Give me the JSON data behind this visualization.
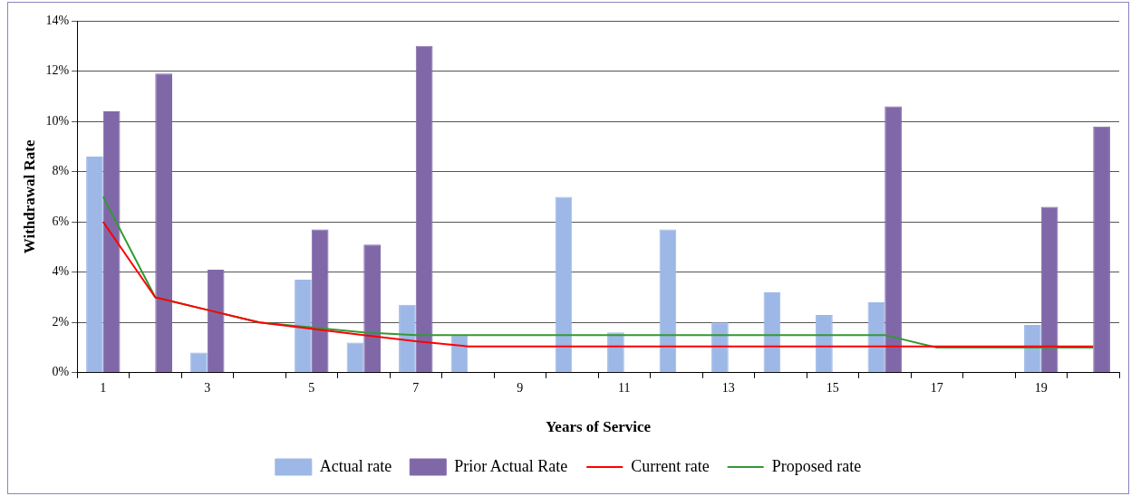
{
  "chart_data": {
    "type": "bar",
    "xlabel": "Years of Service",
    "ylabel": "Withdrawal Rate",
    "categories": [
      "1",
      null,
      "3",
      null,
      "5",
      null,
      "7",
      null,
      "9",
      null,
      "11",
      null,
      "13",
      null,
      "15",
      null,
      "17",
      null,
      "19",
      null
    ],
    "series": [
      {
        "name": "Actual rate",
        "color": "#9db8e6",
        "values": [
          8.6,
          null,
          0.8,
          null,
          3.7,
          1.2,
          2.7,
          1.5,
          null,
          7.0,
          1.6,
          5.7,
          2.0,
          3.2,
          2.3,
          2.8,
          null,
          null,
          1.9,
          null
        ]
      },
      {
        "name": "Prior Actual Rate",
        "color": "#8068a8",
        "values": [
          10.4,
          11.9,
          4.1,
          null,
          5.7,
          5.1,
          13.0,
          null,
          null,
          null,
          null,
          null,
          null,
          null,
          null,
          10.6,
          null,
          null,
          6.6,
          9.8
        ]
      },
      {
        "name": "Current rate",
        "type": "line",
        "color": "#ff0000",
        "values": [
          6,
          3,
          2.5,
          2,
          1.75,
          1.5,
          1.25,
          1.05,
          1.05,
          1.05,
          1.05,
          1.05,
          1.05,
          1.05,
          1.05,
          1.05,
          1.05,
          1.05,
          1.05,
          1.05
        ]
      },
      {
        "name": "Proposed rate",
        "type": "line",
        "color": "#339933",
        "values": [
          7,
          3,
          2.5,
          2,
          1.8,
          1.6,
          1.5,
          1.5,
          1.5,
          1.5,
          1.5,
          1.5,
          1.5,
          1.5,
          1.5,
          1.5,
          1,
          1,
          1,
          1
        ]
      }
    ],
    "ylim": [
      0,
      14
    ],
    "yticks": [
      {
        "value": 0,
        "label": "0%"
      },
      {
        "value": 2,
        "label": "2%"
      },
      {
        "value": 4,
        "label": "4%"
      },
      {
        "value": 6,
        "label": "6%"
      },
      {
        "value": 8,
        "label": "8%"
      },
      {
        "value": 10,
        "label": "10%"
      },
      {
        "value": 12,
        "label": "12%"
      },
      {
        "value": 14,
        "label": "14%"
      }
    ],
    "grid": "y",
    "legend": "bottom",
    "marker": "none",
    "line_style": "solid"
  }
}
